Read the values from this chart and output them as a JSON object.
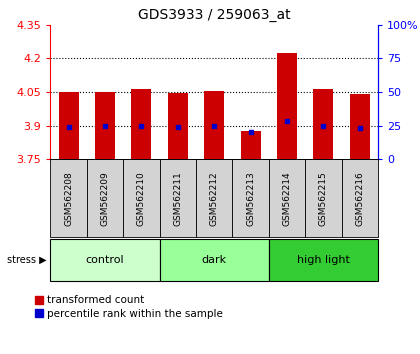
{
  "title": "GDS3933 / 259063_at",
  "samples": [
    "GSM562208",
    "GSM562209",
    "GSM562210",
    "GSM562211",
    "GSM562212",
    "GSM562213",
    "GSM562214",
    "GSM562215",
    "GSM562216"
  ],
  "bar_tops": [
    4.05,
    4.05,
    4.065,
    4.045,
    4.055,
    3.875,
    4.225,
    4.065,
    4.04
  ],
  "bar_bottoms": [
    3.75,
    3.75,
    3.75,
    3.75,
    3.75,
    3.75,
    3.75,
    3.75,
    3.75
  ],
  "blue_dots": [
    3.895,
    3.9,
    3.9,
    3.893,
    3.9,
    3.873,
    3.92,
    3.9,
    3.888
  ],
  "ylim": [
    3.75,
    4.35
  ],
  "yticks_left": [
    3.75,
    3.9,
    4.05,
    4.2,
    4.35
  ],
  "yticks_left_labels": [
    "3.75",
    "3.9",
    "4.05",
    "4.2",
    "4.35"
  ],
  "right_ticks_values": [
    3.75,
    3.9,
    4.05,
    4.2,
    4.35
  ],
  "right_ticks_labels": [
    "0",
    "25",
    "50",
    "75",
    "100%"
  ],
  "gridlines": [
    3.9,
    4.05,
    4.2
  ],
  "groups": [
    {
      "label": "control",
      "start": 0,
      "end": 3,
      "color": "#ccffcc"
    },
    {
      "label": "dark",
      "start": 3,
      "end": 6,
      "color": "#99ff99"
    },
    {
      "label": "high light",
      "start": 6,
      "end": 9,
      "color": "#33cc33"
    }
  ],
  "bar_color": "#cc0000",
  "dot_color": "#0000cc",
  "sample_bg_color": "#d3d3d3",
  "legend_red": "transformed count",
  "legend_blue": "percentile rank within the sample",
  "stress_label": "stress"
}
